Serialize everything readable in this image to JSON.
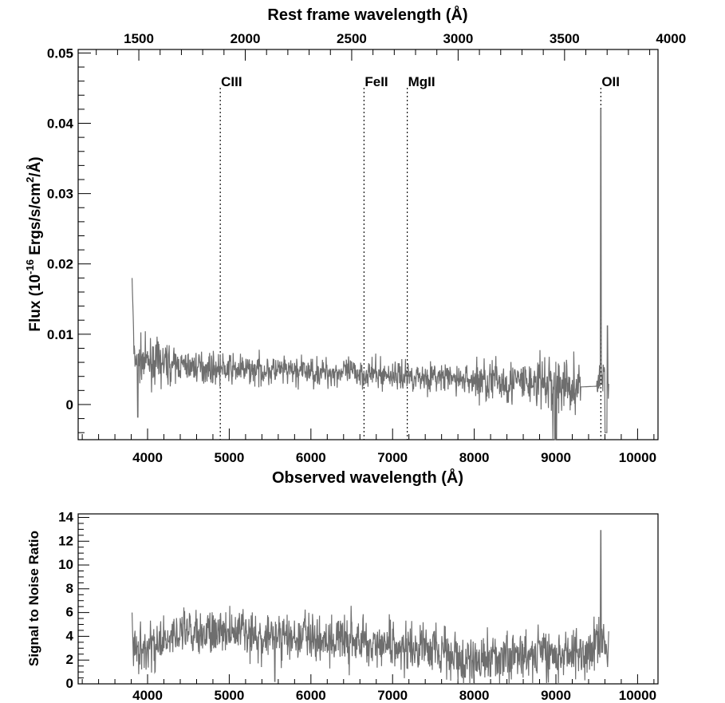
{
  "chart_data": [
    {
      "type": "line",
      "panel": "spectrum",
      "xlabel": "Observed wavelength (Å)",
      "ylabel": "Flux (10^-16 Ergs/s/cm^2/Å)",
      "ylabel_parts": [
        "Flux (10",
        "-16",
        " Ergs/s/cm",
        "2",
        "/Å)"
      ],
      "top_xlabel": "Rest frame wavelength (Å)",
      "xlim": [
        3150,
        10250
      ],
      "ylim": [
        -0.005,
        0.0505
      ],
      "xticks": [
        4000,
        5000,
        6000,
        7000,
        8000,
        9000,
        10000
      ],
      "xtick_labels": [
        "4000",
        "5000",
        "6000",
        "7000",
        "8000",
        "9000",
        "10000"
      ],
      "yticks": [
        0,
        0.01,
        0.02,
        0.03,
        0.04,
        0.05
      ],
      "ytick_labels": [
        "0",
        "0.01",
        "0.02",
        "0.03",
        "0.04",
        "0.05"
      ],
      "rest_xticks": [
        1500,
        2000,
        2500,
        3000,
        3500,
        4000
      ],
      "rest_xtick_labels": [
        "1500",
        "2000",
        "2500",
        "3000",
        "3500",
        "4000"
      ],
      "rest_xlim": [
        1215,
        3939
      ],
      "emission_lines": [
        {
          "label": "CIII",
          "x": 4890
        },
        {
          "label": "FeII",
          "x": 6650
        },
        {
          "label": "MgII",
          "x": 7180
        },
        {
          "label": "OII",
          "x": 9550
        }
      ],
      "series": [
        {
          "x": [
            3810,
            3860,
            3900,
            3950,
            4000,
            4050,
            4100,
            4150,
            4200,
            4250,
            4300,
            4350,
            4400,
            4450,
            4500,
            4550,
            4600,
            4650,
            4700,
            4750,
            4800,
            4850,
            4900,
            4950,
            5000,
            5100,
            5200,
            5300,
            5400,
            5500,
            5600,
            5700,
            5800,
            5900,
            6000,
            6100,
            6200,
            6300,
            6400,
            6500,
            6600,
            6700,
            6800,
            6900,
            7000,
            7100,
            7200,
            7300,
            7400,
            7500,
            7600,
            7700,
            7800,
            7900,
            8000,
            8100,
            8200,
            8300,
            8400,
            8500,
            8600,
            8700,
            8800,
            8900,
            9000,
            9100,
            9200,
            9300,
            9400,
            9500,
            9550,
            9600,
            9650
          ],
          "y": [
            0.006,
            0.0065,
            0.0063,
            0.0062,
            0.006,
            0.0061,
            0.006,
            0.0059,
            0.0058,
            0.0058,
            0.0057,
            0.0056,
            0.0056,
            0.0055,
            0.0055,
            0.0054,
            0.0054,
            0.0053,
            0.0053,
            0.0052,
            0.0052,
            0.0051,
            0.0051,
            0.005,
            0.005,
            0.005,
            0.0049,
            0.0049,
            0.0049,
            0.0048,
            0.0048,
            0.0047,
            0.0047,
            0.0047,
            0.0047,
            0.0046,
            0.0046,
            0.0046,
            0.0046,
            0.0045,
            0.0045,
            0.0044,
            0.0043,
            0.0042,
            0.0042,
            0.0041,
            0.0041,
            0.004,
            0.0039,
            0.0039,
            0.0038,
            0.0037,
            0.0036,
            0.0035,
            0.0035,
            0.0034,
            0.0034,
            0.0033,
            0.0032,
            0.0031,
            0.0031,
            0.003,
            0.003,
            0.0029,
            0.0028,
            0.0027,
            0.0027,
            0.0026,
            0.0027,
            0.0028,
            0.005,
            0.003,
            0.002
          ],
          "color": "#6e6e6e"
        }
      ]
    },
    {
      "type": "line",
      "panel": "snr",
      "ylabel": "Signal to Noise Ratio",
      "xlim": [
        3150,
        10250
      ],
      "ylim": [
        0,
        14.3
      ],
      "xticks": [
        4000,
        5000,
        6000,
        7000,
        8000,
        9000,
        10000
      ],
      "xtick_labels": [
        "4000",
        "5000",
        "6000",
        "7000",
        "8000",
        "9000",
        "10000"
      ],
      "yticks": [
        0,
        2,
        4,
        6,
        8,
        10,
        12,
        14
      ],
      "ytick_labels": [
        "0",
        "2",
        "4",
        "6",
        "8",
        "10",
        "12",
        "14"
      ],
      "series": [
        {
          "x": [
            3810,
            3900,
            4000,
            4100,
            4200,
            4300,
            4400,
            4500,
            4600,
            4700,
            4800,
            4900,
            5000,
            5100,
            5200,
            5300,
            5400,
            5500,
            5600,
            5700,
            5800,
            5900,
            6000,
            6100,
            6200,
            6300,
            6400,
            6500,
            6600,
            6700,
            6800,
            6900,
            7000,
            7100,
            7200,
            7300,
            7400,
            7500,
            7600,
            7700,
            7800,
            7900,
            8000,
            8100,
            8200,
            8300,
            8400,
            8500,
            8600,
            8700,
            8800,
            8900,
            9000,
            9100,
            9200,
            9300,
            9400,
            9500,
            9600,
            9650
          ],
          "y": [
            2.6,
            2.8,
            3.0,
            3.4,
            4.0,
            4.2,
            4.3,
            4.4,
            4.4,
            4.5,
            4.5,
            4.4,
            4.3,
            4.3,
            4.2,
            4.2,
            4.1,
            4.1,
            3.9,
            3.9,
            3.8,
            3.8,
            3.8,
            3.8,
            3.8,
            3.7,
            3.7,
            3.6,
            3.6,
            3.5,
            3.4,
            3.3,
            3.2,
            3.2,
            3.1,
            3.0,
            3.0,
            2.9,
            2.9,
            2.6,
            1.6,
            1.7,
            2.1,
            2.2,
            2.3,
            2.3,
            2.4,
            2.4,
            2.4,
            2.5,
            2.6,
            2.4,
            2.3,
            2.4,
            2.5,
            2.6,
            2.8,
            3.4,
            3.0,
            2.5
          ],
          "color": "#6e6e6e"
        }
      ]
    }
  ]
}
